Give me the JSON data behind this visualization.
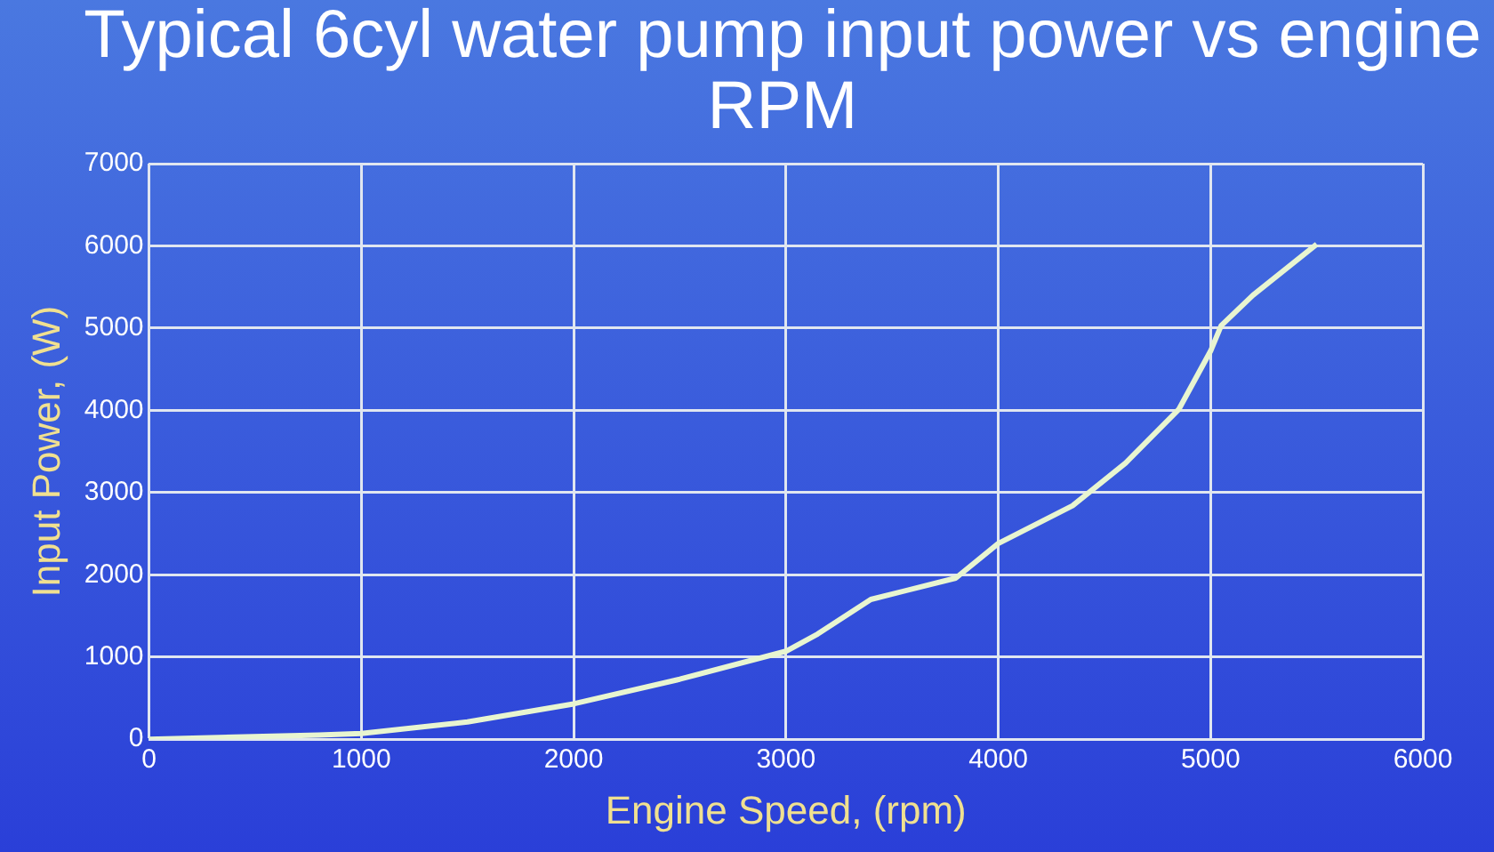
{
  "chart_data": {
    "type": "line",
    "title": "Typical 6cyl water pump input power vs engine RPM",
    "xlabel": "Engine Speed, (rpm)",
    "ylabel": "Input Power, (W)",
    "x": [
      0,
      800,
      1000,
      1500,
      2000,
      2500,
      3000,
      3150,
      3400,
      3800,
      4000,
      4350,
      4600,
      4850,
      5000,
      5050,
      5200,
      5500
    ],
    "series": [
      {
        "color": "#e8f5d0",
        "values": [
          0,
          50,
          70,
          210,
          430,
          730,
          1070,
          1280,
          1700,
          1960,
          2380,
          2840,
          3360,
          4010,
          4720,
          5030,
          5400,
          6020
        ]
      }
    ],
    "xlim": [
      0,
      6000
    ],
    "xticks": [
      0,
      1000,
      2000,
      3000,
      4000,
      5000,
      6000
    ],
    "ylim": [
      0,
      7000
    ],
    "yticks": [
      0,
      1000,
      2000,
      3000,
      4000,
      5000,
      6000,
      7000
    ],
    "grid": true,
    "legend": false,
    "marker": "none",
    "line_style": "solid"
  }
}
